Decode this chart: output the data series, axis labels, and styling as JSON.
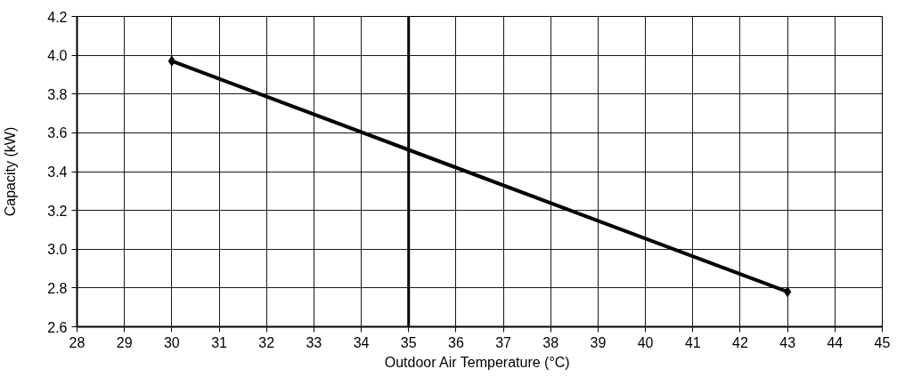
{
  "chart_data": {
    "type": "line",
    "xlabel": "Outdoor  Air Temperature (°C)",
    "ylabel": "Capacity (kW)",
    "series": [
      {
        "x": [
          30,
          43
        ],
        "values": [
          3.97,
          2.78
        ],
        "color": "#000000"
      }
    ],
    "marker": "diamond",
    "line_style": "solid",
    "xlim": [
      28,
      45
    ],
    "xticks": [
      28,
      29,
      30,
      31,
      32,
      33,
      34,
      35,
      36,
      37,
      38,
      39,
      40,
      41,
      42,
      43,
      44,
      45
    ],
    "ylim": [
      2.6,
      4.2
    ],
    "yticks": [
      2.6,
      2.8,
      {
        "value": 3.0,
        "label": "3.0"
      },
      3.2,
      3.4,
      3.6,
      3.8,
      {
        "value": 4.0,
        "label": "4.0"
      },
      4.2
    ],
    "grid": true,
    "ref_lines": [
      {
        "axis": "x",
        "value": 35,
        "color": "#000000"
      }
    ]
  }
}
